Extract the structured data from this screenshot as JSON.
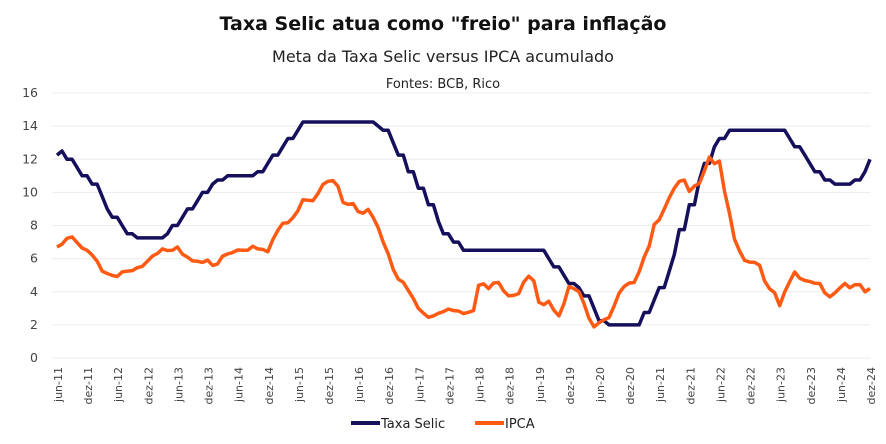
{
  "chart_data": {
    "type": "line",
    "title": "Taxa Selic atua como \"freio\" para inflação",
    "subtitle": "Meta da Taxa Selic versus IPCA acumulado",
    "source": "Fontes: BCB, Rico",
    "xlabel": "",
    "ylabel": "",
    "ylim": [
      0,
      16
    ],
    "yticks": [
      "0",
      "2",
      "4",
      "6",
      "8",
      "10",
      "12",
      "14",
      "16"
    ],
    "xticks": [
      "jun-11",
      "dez-11",
      "jun-12",
      "dez-12",
      "jun-13",
      "dez-13",
      "jun-14",
      "dez-14",
      "jun-15",
      "dez-15",
      "jun-16",
      "dez-16",
      "jun-17",
      "dez-17",
      "jun-18",
      "dez-18",
      "jun-19",
      "dez-19",
      "jun-20",
      "dez-20",
      "jun-21",
      "dez-21",
      "jun-22",
      "dez-22",
      "jun-23",
      "dez-23",
      "jun-24",
      "dez-24"
    ],
    "x_start": "jun-11",
    "x_frequency": "monthly",
    "grid": true,
    "legend_position": "bottom",
    "series": [
      {
        "name": "Taxa Selic",
        "color": "#16105c",
        "values": [
          12.25,
          12.5,
          12.0,
          12.0,
          11.5,
          11.0,
          11.0,
          10.5,
          10.5,
          9.75,
          9.0,
          8.5,
          8.5,
          8.0,
          7.5,
          7.5,
          7.25,
          7.25,
          7.25,
          7.25,
          7.25,
          7.25,
          7.5,
          8.0,
          8.0,
          8.5,
          9.0,
          9.0,
          9.5,
          10.0,
          10.0,
          10.5,
          10.75,
          10.75,
          11.0,
          11.0,
          11.0,
          11.0,
          11.0,
          11.0,
          11.25,
          11.25,
          11.75,
          12.25,
          12.25,
          12.75,
          13.25,
          13.25,
          13.75,
          14.25,
          14.25,
          14.25,
          14.25,
          14.25,
          14.25,
          14.25,
          14.25,
          14.25,
          14.25,
          14.25,
          14.25,
          14.25,
          14.25,
          14.25,
          14.0,
          13.75,
          13.75,
          13.0,
          12.25,
          12.25,
          11.25,
          11.25,
          10.25,
          10.25,
          9.25,
          9.25,
          8.25,
          7.5,
          7.5,
          7.0,
          7.0,
          6.5,
          6.5,
          6.5,
          6.5,
          6.5,
          6.5,
          6.5,
          6.5,
          6.5,
          6.5,
          6.5,
          6.5,
          6.5,
          6.5,
          6.5,
          6.5,
          6.5,
          6.0,
          5.5,
          5.5,
          5.0,
          4.5,
          4.5,
          4.25,
          3.75,
          3.75,
          3.0,
          2.25,
          2.25,
          2.0,
          2.0,
          2.0,
          2.0,
          2.0,
          2.0,
          2.0,
          2.75,
          2.75,
          3.5,
          4.25,
          4.25,
          5.25,
          6.25,
          7.75,
          7.75,
          9.25,
          9.25,
          10.75,
          11.75,
          11.75,
          12.75,
          13.25,
          13.25,
          13.75,
          13.75,
          13.75,
          13.75,
          13.75,
          13.75,
          13.75,
          13.75,
          13.75,
          13.75,
          13.75,
          13.75,
          13.25,
          12.75,
          12.75,
          12.25,
          11.75,
          11.25,
          11.25,
          10.75,
          10.75,
          10.5,
          10.5,
          10.5,
          10.5,
          10.75,
          10.75,
          11.25,
          12.0
        ]
      },
      {
        "name": "IPCA",
        "color": "#ff5a14",
        "values": [
          6.71,
          6.87,
          7.23,
          7.31,
          6.97,
          6.64,
          6.5,
          6.22,
          5.85,
          5.24,
          5.1,
          4.99,
          4.92,
          5.2,
          5.24,
          5.28,
          5.45,
          5.53,
          5.84,
          6.15,
          6.31,
          6.59,
          6.49,
          6.5,
          6.7,
          6.27,
          6.09,
          5.86,
          5.84,
          5.77,
          5.91,
          5.59,
          5.68,
          6.15,
          6.28,
          6.37,
          6.52,
          6.5,
          6.51,
          6.75,
          6.59,
          6.56,
          6.41,
          7.14,
          7.7,
          8.13,
          8.17,
          8.47,
          8.89,
          9.56,
          9.53,
          9.49,
          9.93,
          10.48,
          10.67,
          10.71,
          10.36,
          9.39,
          9.28,
          9.32,
          8.84,
          8.74,
          8.97,
          8.48,
          7.87,
          6.99,
          6.29,
          5.35,
          4.76,
          4.57,
          4.08,
          3.6,
          3.0,
          2.71,
          2.46,
          2.54,
          2.7,
          2.8,
          2.95,
          2.86,
          2.84,
          2.68,
          2.76,
          2.86,
          4.39,
          4.48,
          4.19,
          4.53,
          4.56,
          4.05,
          3.75,
          3.78,
          3.89,
          4.58,
          4.94,
          4.66,
          3.37,
          3.22,
          3.43,
          2.89,
          2.54,
          3.27,
          4.31,
          4.19,
          4.01,
          3.3,
          2.4,
          1.88,
          2.13,
          2.31,
          2.44,
          3.14,
          3.92,
          4.31,
          4.52,
          4.56,
          5.2,
          6.1,
          6.76,
          8.06,
          8.35,
          8.99,
          9.68,
          10.25,
          10.67,
          10.74,
          10.06,
          10.38,
          10.54,
          11.3,
          12.13,
          11.73,
          11.89,
          10.07,
          8.73,
          7.17,
          6.47,
          5.9,
          5.79,
          5.77,
          5.6,
          4.65,
          4.18,
          3.94,
          3.16,
          3.99,
          4.61,
          5.19,
          4.82,
          4.68,
          4.62,
          4.51,
          4.5,
          3.93,
          3.69,
          3.93,
          4.23,
          4.5,
          4.24,
          4.42,
          4.43,
          4.0,
          4.2
        ]
      }
    ]
  }
}
